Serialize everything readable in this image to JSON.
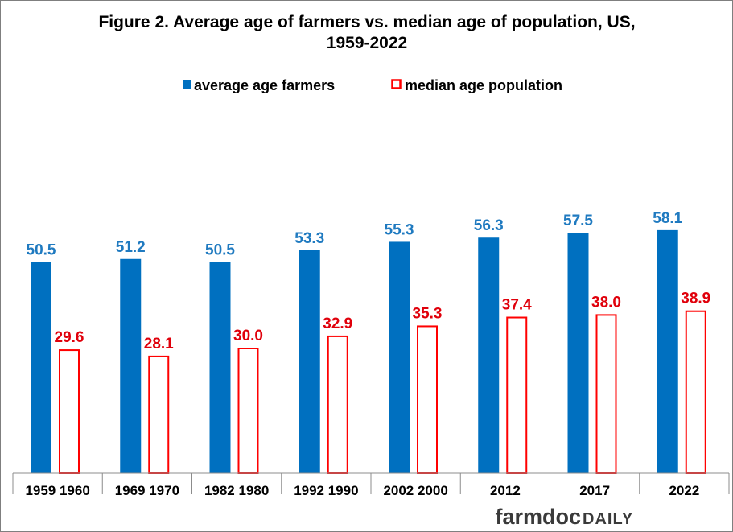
{
  "chart_data": {
    "type": "bar",
    "title_lines": [
      "Figure 2.  Average age of farmers vs. median age of population,  US,",
      "1959-2022"
    ],
    "categories": [
      "1959 1960",
      "1969 1970",
      "1982 1980",
      "1992 1990",
      "2002 2000",
      "2012",
      "2017",
      "2022"
    ],
    "series": [
      {
        "name": "average age farmers",
        "values": [
          50.5,
          51.2,
          50.5,
          53.3,
          55.3,
          56.3,
          57.5,
          58.1
        ],
        "labels": [
          "50.5",
          "51.2",
          "50.5",
          "53.3",
          "55.3",
          "56.3",
          "57.5",
          "58.1"
        ],
        "color": "#0070c0",
        "style": "filled"
      },
      {
        "name": "median age population",
        "values": [
          29.6,
          28.1,
          30.0,
          32.9,
          35.3,
          37.4,
          38.0,
          38.9
        ],
        "labels": [
          "29.6",
          "28.1",
          "30.0",
          "32.9",
          "35.3",
          "37.4",
          "38.0",
          "38.9"
        ],
        "color": "#ff0000",
        "style": "outline"
      }
    ],
    "ylim": [
      0,
      80
    ],
    "xlabel": "",
    "ylabel": "",
    "grid": false,
    "legend_position": "top-center",
    "label_colors": {
      "farmers": "#1f7ac0",
      "population": "#e0000b"
    }
  },
  "branding": {
    "farmdoc": "farmdoc",
    "daily": "DAILY"
  }
}
